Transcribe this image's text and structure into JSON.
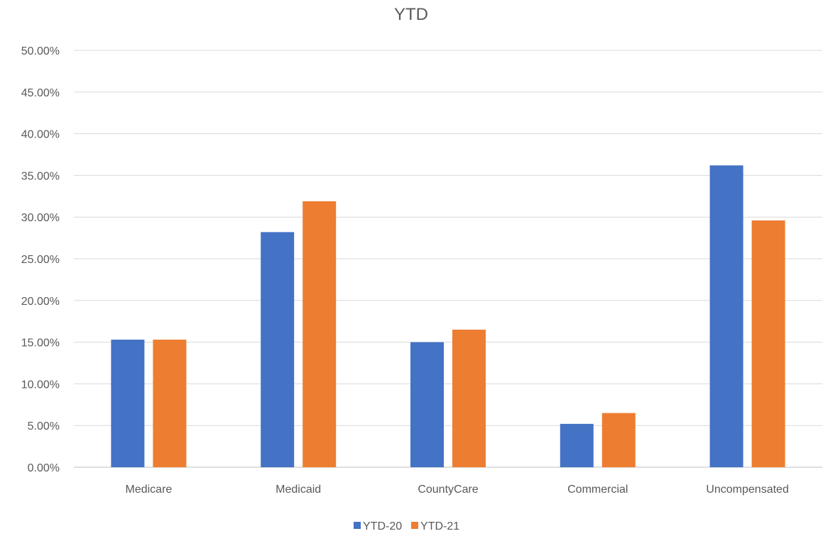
{
  "chart_data": {
    "type": "bar",
    "title": "YTD",
    "categories": [
      "Medicare",
      "Medicaid",
      "CountyCare",
      "Commercial",
      "Uncompensated"
    ],
    "series": [
      {
        "name": "YTD-20",
        "color": "#4472c4",
        "values": [
          15.3,
          28.2,
          15.0,
          5.2,
          36.2
        ]
      },
      {
        "name": "YTD-21",
        "color": "#ed7d31",
        "values": [
          15.3,
          31.9,
          16.5,
          6.5,
          29.6
        ]
      }
    ],
    "ylim": [
      0,
      50
    ],
    "yticks": [
      "0.00%",
      "5.00%",
      "10.00%",
      "15.00%",
      "20.00%",
      "25.00%",
      "30.00%",
      "35.00%",
      "40.00%",
      "45.00%",
      "50.00%"
    ],
    "grid": true,
    "legend_position": "bottom"
  }
}
